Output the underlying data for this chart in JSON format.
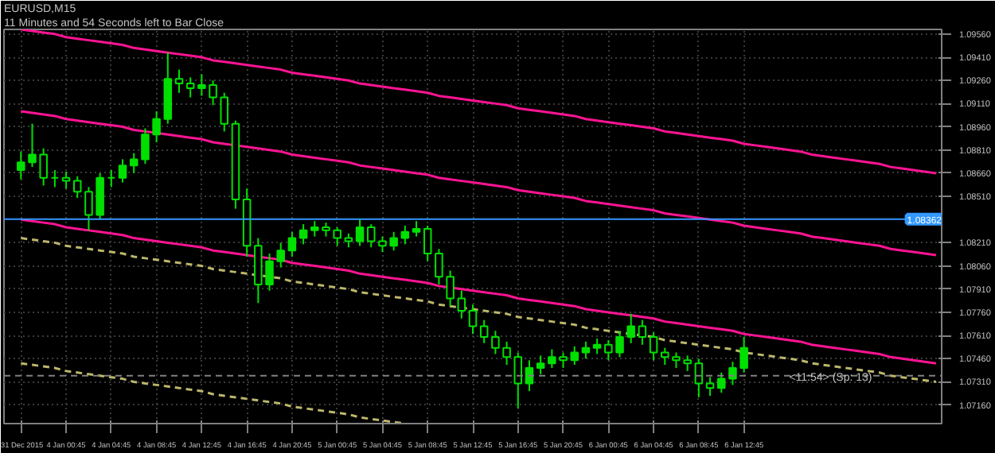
{
  "chart_data": {
    "type": "candlestick",
    "title": "EURUSD,M15",
    "subtitle": "11 Minutes and 54 Seconds left to Bar Close",
    "color": "#00e000",
    "categories": [
      "31 Dec 2015",
      null,
      null,
      null,
      "4 Jan 00:45",
      null,
      null,
      null,
      "4 Jan 04:45",
      null,
      null,
      null,
      "4 Jan 08:45",
      null,
      null,
      null,
      "4 Jan 12:45",
      null,
      null,
      null,
      "4 Jan 16:45",
      null,
      null,
      null,
      "4 Jan 20:45",
      null,
      null,
      null,
      "5 Jan 00:45",
      null,
      null,
      null,
      "5 Jan 04:45",
      null,
      null,
      null,
      "5 Jan 08:45",
      null,
      null,
      null,
      "5 Jan 12:45",
      null,
      null,
      null,
      "5 Jan 16:45",
      null,
      null,
      null,
      "5 Jan 20:45",
      null,
      null,
      null,
      "6 Jan 00:45",
      null,
      null,
      null,
      "6 Jan 04:45",
      null,
      null,
      null,
      "6 Jan 08:45",
      null,
      null,
      null,
      "6 Jan 12:45",
      null,
      null,
      null,
      null,
      null,
      null,
      null,
      null,
      null,
      null,
      null,
      null,
      null,
      null,
      null,
      null,
      null
    ],
    "ohlc": [
      [
        1.0868,
        1.088,
        1.0862,
        1.0873
      ],
      [
        1.0873,
        1.0898,
        1.087,
        1.0878
      ],
      [
        1.0878,
        1.0882,
        1.0858,
        1.0863
      ],
      [
        1.0863,
        1.0868,
        1.0857,
        1.0863
      ],
      [
        1.0863,
        1.0867,
        1.0856,
        1.0861
      ],
      [
        1.0861,
        1.0864,
        1.085,
        1.0854
      ],
      [
        1.0854,
        1.0857,
        1.0829,
        1.0839
      ],
      [
        1.0839,
        1.0866,
        1.0836,
        1.0863
      ],
      [
        1.0863,
        1.0868,
        1.0857,
        1.0863
      ],
      [
        1.0863,
        1.0875,
        1.086,
        1.0871
      ],
      [
        1.0871,
        1.0879,
        1.0866,
        1.0875
      ],
      [
        1.0875,
        1.0895,
        1.0872,
        1.0891
      ],
      [
        1.0891,
        1.0906,
        1.0886,
        1.0901
      ],
      [
        1.0901,
        1.0944,
        1.0898,
        1.0927
      ],
      [
        1.0927,
        1.0933,
        1.0918,
        1.0924
      ],
      [
        1.0924,
        1.0928,
        1.0915,
        1.0921
      ],
      [
        1.0921,
        1.093,
        1.0916,
        1.0923
      ],
      [
        1.0923,
        1.0926,
        1.091,
        1.0915
      ],
      [
        1.0915,
        1.0918,
        1.0893,
        1.0898
      ],
      [
        1.0898,
        1.09,
        1.0843,
        1.0849
      ],
      [
        1.0849,
        1.0856,
        1.0812,
        1.0819
      ],
      [
        1.0819,
        1.0824,
        1.0782,
        1.0794
      ],
      [
        1.0794,
        1.0814,
        1.079,
        1.0809
      ],
      [
        1.0809,
        1.0821,
        1.0805,
        1.0816
      ],
      [
        1.0816,
        1.0828,
        1.0812,
        1.0824
      ],
      [
        1.0824,
        1.0833,
        1.082,
        1.0829
      ],
      [
        1.0829,
        1.0835,
        1.0825,
        1.0831
      ],
      [
        1.0831,
        1.0834,
        1.0825,
        1.0829
      ],
      [
        1.0829,
        1.0831,
        1.0819,
        1.0824
      ],
      [
        1.0824,
        1.0827,
        1.0818,
        1.0822
      ],
      [
        1.0822,
        1.0836,
        1.0819,
        1.0831
      ],
      [
        1.0831,
        1.0833,
        1.0818,
        1.0822
      ],
      [
        1.0822,
        1.0825,
        1.0815,
        1.0819
      ],
      [
        1.0819,
        1.0828,
        1.0816,
        1.0824
      ],
      [
        1.0824,
        1.0832,
        1.082,
        1.0828
      ],
      [
        1.0828,
        1.0835,
        1.0825,
        1.083
      ],
      [
        1.083,
        1.0832,
        1.0809,
        1.0814
      ],
      [
        1.0814,
        1.0817,
        1.0794,
        1.0799
      ],
      [
        1.0799,
        1.0803,
        1.078,
        1.0785
      ],
      [
        1.0785,
        1.079,
        1.0772,
        1.0777
      ],
      [
        1.0777,
        1.0781,
        1.0762,
        1.0767
      ],
      [
        1.0767,
        1.0771,
        1.0756,
        1.076
      ],
      [
        1.076,
        1.0764,
        1.0749,
        1.0753
      ],
      [
        1.0753,
        1.0757,
        1.0742,
        1.0747
      ],
      [
        1.0747,
        1.075,
        1.0714,
        1.073
      ],
      [
        1.073,
        1.0745,
        1.0725,
        1.074
      ],
      [
        1.074,
        1.0748,
        1.0736,
        1.0743
      ],
      [
        1.0743,
        1.0752,
        1.074,
        1.0747
      ],
      [
        1.0747,
        1.075,
        1.074,
        1.0745
      ],
      [
        1.0745,
        1.0754,
        1.0742,
        1.075
      ],
      [
        1.075,
        1.0757,
        1.0746,
        1.0753
      ],
      [
        1.0753,
        1.0759,
        1.0749,
        1.0755
      ],
      [
        1.0755,
        1.0758,
        1.0745,
        1.075
      ],
      [
        1.075,
        1.0764,
        1.0747,
        1.076
      ],
      [
        1.076,
        1.0775,
        1.0756,
        1.0767
      ],
      [
        1.0767,
        1.0771,
        1.0755,
        1.076
      ],
      [
        1.076,
        1.0763,
        1.0745,
        1.075
      ],
      [
        1.075,
        1.0753,
        1.0742,
        1.0747
      ],
      [
        1.0747,
        1.075,
        1.074,
        1.0745
      ],
      [
        1.0745,
        1.0748,
        1.0738,
        1.0743
      ],
      [
        1.0743,
        1.0746,
        1.0721,
        1.073
      ],
      [
        1.073,
        1.0734,
        1.0722,
        1.0727
      ],
      [
        1.0727,
        1.0737,
        1.0724,
        1.0733
      ],
      [
        1.0733,
        1.0744,
        1.0729,
        1.074
      ],
      [
        1.074,
        1.076,
        1.0737,
        1.0753
      ],
      null,
      null,
      null,
      null,
      null,
      null,
      null,
      null,
      null,
      null,
      null,
      null,
      null,
      null,
      null,
      null,
      null
    ],
    "series": [
      {
        "type": "line",
        "color": "#ff1493",
        "line_style": "solid",
        "values": [
          1.0959,
          1.0958,
          1.0957,
          1.0956,
          1.0954,
          1.0953,
          1.0952,
          1.0951,
          1.095,
          1.0949,
          1.0947,
          1.0946,
          1.0945,
          1.0944,
          1.0943,
          1.0942,
          1.0941,
          1.0939,
          1.0938,
          1.0937,
          1.0936,
          1.0935,
          1.0934,
          1.0933,
          1.0931,
          1.093,
          1.0929,
          1.0928,
          1.0927,
          1.0926,
          1.0924,
          1.0923,
          1.0922,
          1.0921,
          1.092,
          1.0919,
          1.0918,
          1.0916,
          1.0915,
          1.0914,
          1.0913,
          1.0912,
          1.0911,
          1.091,
          1.0908,
          1.0907,
          1.0906,
          1.0905,
          1.0904,
          1.0903,
          1.0901,
          1.09,
          1.0899,
          1.0898,
          1.0897,
          1.0896,
          1.0895,
          1.0893,
          1.0892,
          1.0891,
          1.089,
          1.0889,
          1.0888,
          1.0887,
          1.0885,
          1.0884,
          1.0883,
          1.0882,
          1.0881,
          1.088,
          1.0878,
          1.0877,
          1.0876,
          1.0875,
          1.0874,
          1.0873,
          1.0872,
          1.087,
          1.0869,
          1.0868,
          1.0867,
          1.0866
        ]
      },
      {
        "type": "line",
        "color": "#ff1493",
        "line_style": "solid",
        "values": [
          1.0906,
          1.0905,
          1.0904,
          1.0903,
          1.0901,
          1.09,
          1.0899,
          1.0898,
          1.0897,
          1.0896,
          1.0894,
          1.0893,
          1.0892,
          1.0891,
          1.089,
          1.0889,
          1.0888,
          1.0886,
          1.0885,
          1.0884,
          1.0883,
          1.0882,
          1.0881,
          1.088,
          1.0878,
          1.0877,
          1.0876,
          1.0875,
          1.0874,
          1.0873,
          1.0871,
          1.087,
          1.0869,
          1.0868,
          1.0867,
          1.0866,
          1.0865,
          1.0863,
          1.0862,
          1.0861,
          1.086,
          1.0859,
          1.0858,
          1.0857,
          1.0855,
          1.0854,
          1.0853,
          1.0852,
          1.0851,
          1.085,
          1.0848,
          1.0847,
          1.0846,
          1.0845,
          1.0844,
          1.0843,
          1.0842,
          1.084,
          1.0839,
          1.0838,
          1.0837,
          1.0836,
          1.0835,
          1.0834,
          1.0832,
          1.0831,
          1.083,
          1.0829,
          1.0828,
          1.0827,
          1.0825,
          1.0824,
          1.0823,
          1.0822,
          1.0821,
          1.082,
          1.0819,
          1.0817,
          1.0816,
          1.0815,
          1.0814,
          1.0813
        ]
      },
      {
        "type": "line",
        "color": "#ff1493",
        "line_style": "solid",
        "values": [
          1.0836,
          1.0835,
          1.0834,
          1.0833,
          1.0831,
          1.083,
          1.0829,
          1.0828,
          1.0827,
          1.0826,
          1.0824,
          1.0823,
          1.0822,
          1.0821,
          1.082,
          1.0819,
          1.0818,
          1.0816,
          1.0815,
          1.0814,
          1.0813,
          1.0812,
          1.0811,
          1.081,
          1.0808,
          1.0807,
          1.0806,
          1.0805,
          1.0804,
          1.0803,
          1.0801,
          1.08,
          1.0799,
          1.0798,
          1.0797,
          1.0796,
          1.0795,
          1.0793,
          1.0792,
          1.0791,
          1.079,
          1.0789,
          1.0788,
          1.0787,
          1.0785,
          1.0784,
          1.0783,
          1.0782,
          1.0781,
          1.078,
          1.0778,
          1.0777,
          1.0776,
          1.0775,
          1.0774,
          1.0773,
          1.0772,
          1.077,
          1.0769,
          1.0768,
          1.0767,
          1.0766,
          1.0765,
          1.0764,
          1.0762,
          1.0761,
          1.076,
          1.0759,
          1.0758,
          1.0757,
          1.0755,
          1.0754,
          1.0753,
          1.0752,
          1.0751,
          1.075,
          1.0749,
          1.0747,
          1.0746,
          1.0745,
          1.0744,
          1.0743
        ]
      },
      {
        "type": "line",
        "color": "#bdb76b",
        "line_style": "dashed",
        "values": [
          1.0824,
          1.0823,
          1.0822,
          1.0821,
          1.0819,
          1.0818,
          1.0817,
          1.0816,
          1.0815,
          1.0814,
          1.0812,
          1.0811,
          1.081,
          1.0809,
          1.0808,
          1.0807,
          1.0806,
          1.0804,
          1.0803,
          1.0802,
          1.0801,
          1.08,
          1.0799,
          1.0798,
          1.0796,
          1.0795,
          1.0794,
          1.0793,
          1.0792,
          1.0791,
          1.0789,
          1.0788,
          1.0787,
          1.0786,
          1.0785,
          1.0784,
          1.0783,
          1.0781,
          1.078,
          1.0779,
          1.0778,
          1.0777,
          1.0776,
          1.0775,
          1.0773,
          1.0772,
          1.0771,
          1.077,
          1.0769,
          1.0768,
          1.0766,
          1.0765,
          1.0764,
          1.0763,
          1.0762,
          1.0761,
          1.076,
          1.0758,
          1.0757,
          1.0756,
          1.0755,
          1.0754,
          1.0753,
          1.0752,
          1.075,
          1.0749,
          1.0748,
          1.0747,
          1.0746,
          1.0745,
          1.0743,
          1.0742,
          1.0741,
          1.074,
          1.0739,
          1.0738,
          1.0737,
          1.0735,
          1.0734,
          1.0733,
          1.0732,
          1.0731
        ]
      },
      {
        "type": "line",
        "color": "#bdb76b",
        "line_style": "dashed",
        "values": [
          1.0743,
          1.0742,
          1.0741,
          1.074,
          1.0738,
          1.0737,
          1.0736,
          1.0735,
          1.0734,
          1.0733,
          1.0731,
          1.073,
          1.0729,
          1.0728,
          1.0727,
          1.0726,
          1.0725,
          1.0723,
          1.0722,
          1.0721,
          1.072,
          1.0719,
          1.0718,
          1.0717,
          1.0715,
          1.0714,
          1.0713,
          1.0712,
          1.0711,
          1.071,
          1.0708,
          1.0707,
          1.0706,
          1.0705,
          1.0704,
          null,
          null,
          null,
          null,
          null,
          null,
          null,
          null,
          null,
          null,
          null,
          null,
          null,
          null,
          null,
          null,
          null,
          null,
          null,
          null,
          null,
          null,
          null,
          null,
          null,
          null,
          null,
          null,
          null,
          null,
          null,
          null,
          null,
          null,
          null,
          null,
          null,
          null,
          null,
          null,
          null,
          null,
          null,
          null,
          null,
          null,
          null
        ]
      }
    ],
    "ref_lines": [
      {
        "axis": "y",
        "value": 1.08362,
        "label": "1.08362",
        "color": "#3399ff",
        "line_style": "solid"
      },
      {
        "axis": "y",
        "value": 1.0735,
        "color": "#808080",
        "line_style": "dashed"
      }
    ],
    "annotations": [
      "<11:54> (Sp: 13)"
    ],
    "ylim": [
      1.0704,
      1.0959
    ],
    "yticks": [
      {
        "value": 1.0956,
        "label": "1.09560"
      },
      {
        "value": 1.0941,
        "label": "1.09410"
      },
      {
        "value": 1.0926,
        "label": "1.09260"
      },
      {
        "value": 1.0911,
        "label": "1.09110"
      },
      {
        "value": 1.0896,
        "label": "1.08960"
      },
      {
        "value": 1.0881,
        "label": "1.08810"
      },
      {
        "value": 1.0866,
        "label": "1.08660"
      },
      {
        "value": 1.0851,
        "label": "1.08510"
      },
      {
        "value": 1.0821,
        "label": "1.08210"
      },
      {
        "value": 1.0806,
        "label": "1.08060"
      },
      {
        "value": 1.0791,
        "label": "1.07910"
      },
      {
        "value": 1.0776,
        "label": "1.07760"
      },
      {
        "value": 1.0761,
        "label": "1.07610"
      },
      {
        "value": 1.0746,
        "label": "1.07460"
      },
      {
        "value": 1.0731,
        "label": "1.07310"
      },
      {
        "value": 1.0716,
        "label": "1.07160"
      }
    ],
    "grid": true
  }
}
